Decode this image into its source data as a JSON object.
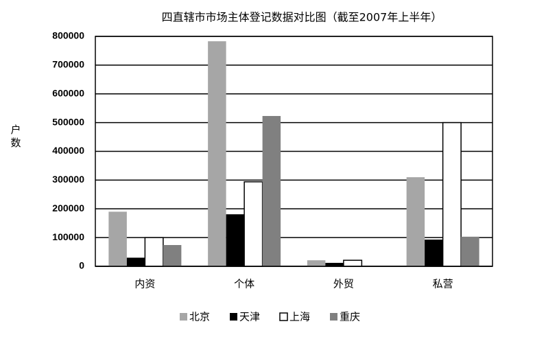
{
  "chart_data": {
    "type": "bar",
    "title": "四直辖市市场主体登记数据对比图（截至2007年上半年）",
    "y_label": "户数",
    "categories": [
      "内资",
      "个体",
      "外贸",
      "私营"
    ],
    "series": [
      {
        "name": "北京",
        "color": "#a6a6a6",
        "values": [
          190000,
          783000,
          21000,
          310000
        ]
      },
      {
        "name": "天津",
        "color": "#000000",
        "values": [
          30000,
          181000,
          12000,
          93000
        ]
      },
      {
        "name": "上海",
        "color": "#ffffff",
        "values": [
          100000,
          294000,
          21000,
          500000
        ]
      },
      {
        "name": "重庆",
        "color": "#808080",
        "values": [
          74000,
          523000,
          0,
          103000
        ]
      }
    ],
    "ylim": [
      0,
      800000
    ],
    "yticks": [
      0,
      100000,
      200000,
      300000,
      400000,
      500000,
      600000,
      700000,
      800000
    ],
    "grid": true,
    "legend": "bottom"
  }
}
